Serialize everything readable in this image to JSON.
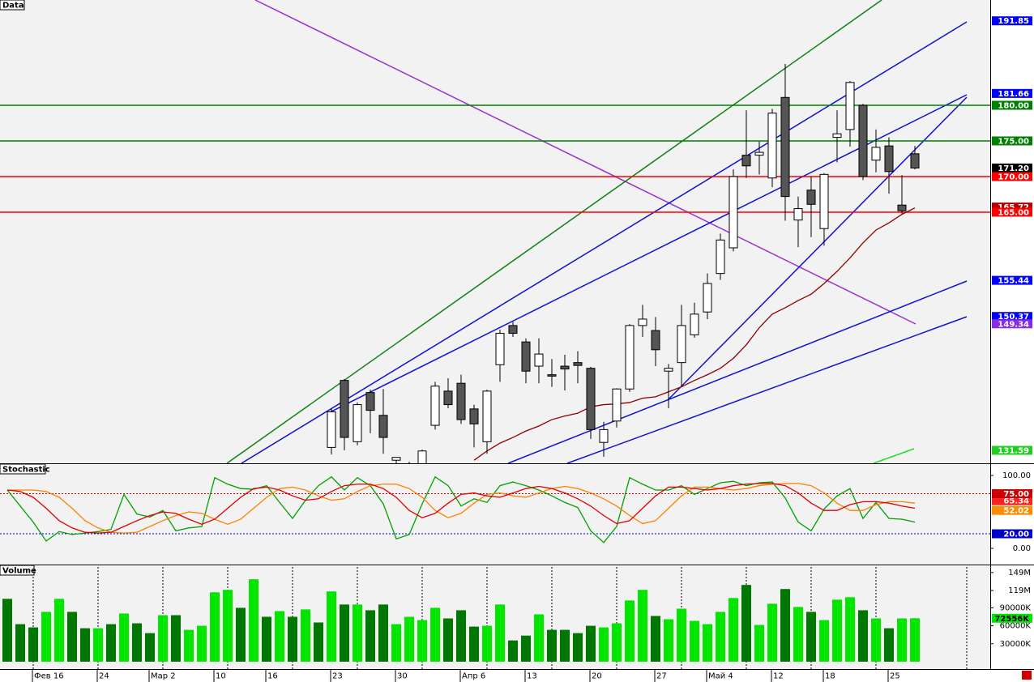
{
  "chart_data": [
    {
      "type": "candlestick",
      "title": "Data",
      "ylim": [
        129.77,
        194.77
      ],
      "open": [
        null,
        null,
        null,
        null,
        null,
        null,
        null,
        null,
        null,
        null,
        null,
        null,
        null,
        null,
        null,
        null,
        null,
        null,
        null,
        null,
        null,
        null,
        null,
        null,
        null,
        132,
        141.4,
        132.8,
        139.7,
        136.5,
        130.2,
        128.5,
        128.5,
        135.1,
        139.9,
        141.0,
        137.4,
        132.8,
        143.6,
        149.1,
        146.8,
        143.4,
        142.2,
        143.4,
        143.9,
        143.1,
        132.7,
        135.7,
        140.2,
        149.1,
        148.4,
        142.7,
        143.9,
        147.8,
        151.0,
        156.4,
        160.0,
        173.0,
        173.0,
        169.8,
        181.1,
        163.9,
        168.1,
        162.7,
        175.5,
        176.6,
        180.0,
        172.3,
        174.3,
        166.0,
        173.2
      ],
      "high": [
        null,
        null,
        null,
        null,
        null,
        null,
        null,
        null,
        null,
        null,
        null,
        null,
        null,
        null,
        null,
        null,
        null,
        null,
        null,
        null,
        null,
        null,
        null,
        null,
        null,
        137.4,
        141.6,
        138.3,
        140.1,
        140.2,
        130.6,
        130,
        131.7,
        141.2,
        141.7,
        142.2,
        138.0,
        140.1,
        148.5,
        149.6,
        147.3,
        147.3,
        144.4,
        145.0,
        145.5,
        143.3,
        135.6,
        140.3,
        149.3,
        152.0,
        150.3,
        143.7,
        152.0,
        152.3,
        156.4,
        162.0,
        171.0,
        179.3,
        174.9,
        179.5,
        185.8,
        167.2,
        170.0,
        170.5,
        179.3,
        183.4,
        180.2,
        176.6,
        175.5,
        170.2,
        174.3
      ],
      "low": [
        null,
        null,
        null,
        null,
        null,
        null,
        null,
        null,
        null,
        null,
        null,
        null,
        null,
        null,
        null,
        null,
        null,
        null,
        null,
        null,
        null,
        null,
        null,
        null,
        null,
        131,
        131.6,
        132.3,
        134.0,
        131.1,
        129.0,
        127,
        127,
        134.5,
        137.5,
        135.3,
        132.0,
        131.1,
        141.2,
        147.5,
        141.0,
        141.0,
        140.5,
        140.0,
        141.0,
        133.2,
        130.7,
        134.8,
        139.8,
        147.5,
        143.4,
        137.5,
        140.6,
        147.4,
        150.0,
        155.5,
        159.5,
        169.8,
        170.3,
        168.5,
        163.8,
        160.1,
        161.5,
        160.3,
        172.0,
        174.2,
        169.5,
        170.6,
        167.6,
        164.8,
        171.0
      ],
      "close": [
        null,
        null,
        null,
        null,
        null,
        null,
        null,
        null,
        null,
        null,
        null,
        null,
        null,
        null,
        null,
        null,
        null,
        null,
        null,
        null,
        null,
        null,
        null,
        null,
        null,
        137.0,
        133.4,
        138.0,
        137.2,
        133.4,
        130.6,
        129.5,
        131.5,
        140.6,
        138.0,
        135.9,
        135.3,
        139.9,
        148.0,
        148.0,
        142.7,
        145.1,
        142.0,
        143.0,
        143.5,
        134.5,
        134.5,
        140.2,
        149.1,
        150.0,
        145.7,
        143.1,
        149.1,
        150.7,
        155.0,
        161.1,
        170.0,
        171.5,
        173.4,
        178.9,
        167.2,
        165.5,
        166.1,
        170.3,
        176.0,
        183.2,
        170.0,
        174.1,
        170.7,
        165.2,
        171.2
      ],
      "ma": {
        "color": "#8b0000",
        "values": [
          null,
          null,
          null,
          null,
          null,
          null,
          null,
          null,
          null,
          null,
          null,
          null,
          null,
          null,
          null,
          null,
          null,
          null,
          null,
          null,
          null,
          null,
          null,
          null,
          null,
          null,
          null,
          null,
          null,
          null,
          null,
          null,
          null,
          null,
          null,
          null,
          130.2,
          131.5,
          132.6,
          133.4,
          134.3,
          135.0,
          135.9,
          136.4,
          136.8,
          137.7,
          138.0,
          138.1,
          138.3,
          138.9,
          139.1,
          139.8,
          140.5,
          141.4,
          142.2,
          143.1,
          144.5,
          146.4,
          148.8,
          150.7,
          151.6,
          152.6,
          153.5,
          155.0,
          156.7,
          158.6,
          160.7,
          162.5,
          163.5,
          164.7,
          165.6
        ]
      },
      "price_labels": [
        {
          "value": 191.85,
          "label": "191.85",
          "color": "#0000ff",
          "line": false
        },
        {
          "value": 181.66,
          "label": "181.66",
          "color": "#0000ff",
          "line": false
        },
        {
          "value": 180,
          "label": "180.00",
          "color": "#008000",
          "line": true
        },
        {
          "value": 175,
          "label": "175.00",
          "color": "#008000",
          "line": true
        },
        {
          "value": 171.2,
          "label": "171.20",
          "color": "#000000",
          "line": false
        },
        {
          "value": 170,
          "label": "170.00",
          "color": "#ff0000",
          "line": true
        },
        {
          "value": 165.72,
          "label": "165.72",
          "color": "#b00000",
          "line": false
        },
        {
          "value": 165,
          "label": "165.00",
          "color": "#ff0000",
          "line": true
        },
        {
          "value": 155.44,
          "label": "155.44",
          "color": "#0000ff",
          "line": false
        },
        {
          "value": 150.37,
          "label": "150.37",
          "color": "#0000ff",
          "line": false
        },
        {
          "value": 149.34,
          "label": "149.34",
          "color": "#8a2be2",
          "line": false
        },
        {
          "value": 131.59,
          "label": "131.59",
          "color": "#22cc22",
          "line": false
        }
      ]
    },
    {
      "type": "line",
      "title": "Stochastic",
      "ylim": [
        -22.2,
        114.4
      ],
      "yticks": [
        {
          "value": 100,
          "label": "100.00"
        },
        {
          "value": 0,
          "label": "0.00"
        }
      ],
      "levels": [
        {
          "value": 75,
          "label": "75.00",
          "color": "#cc0000"
        },
        {
          "value": 20,
          "label": "20.00",
          "color": "#0000cc"
        }
      ],
      "series": [
        {
          "color": "#00a000",
          "values": [
            80,
            58,
            36,
            10,
            23,
            19,
            21,
            23,
            26,
            74,
            47,
            43,
            52,
            24,
            28,
            30,
            97,
            88,
            82,
            81,
            86,
            63,
            41,
            66,
            86,
            98,
            80,
            97,
            86,
            61,
            13,
            19,
            61,
            98,
            86,
            58,
            68,
            63,
            86,
            91,
            86,
            80,
            72,
            63,
            56,
            24,
            8,
            30,
            97,
            88,
            80,
            80,
            86,
            74,
            82,
            90,
            92,
            86,
            90,
            91,
            69,
            36,
            24,
            54,
            72,
            82,
            41,
            63,
            41,
            40,
            36
          ]
        },
        {
          "color": "#ff8000",
          "values": [
            80,
            80,
            80,
            78,
            70,
            55,
            38,
            28,
            22,
            21,
            22,
            30,
            38,
            45,
            50,
            48,
            40,
            33,
            40,
            55,
            70,
            82,
            84,
            80,
            72,
            66,
            68,
            78,
            86,
            88,
            88,
            82,
            70,
            52,
            42,
            48,
            62,
            74,
            76,
            72,
            70,
            76,
            82,
            85,
            82,
            76,
            68,
            58,
            45,
            34,
            38,
            55,
            72,
            84,
            84,
            82,
            80,
            82,
            86,
            88,
            89,
            89,
            86,
            76,
            62,
            52,
            52,
            60,
            64,
            64,
            62
          ]
        },
        {
          "color": "#e00000",
          "values": [
            80,
            78,
            70,
            55,
            38,
            28,
            22,
            21,
            22,
            30,
            38,
            45,
            50,
            48,
            40,
            33,
            40,
            55,
            70,
            82,
            84,
            80,
            72,
            66,
            68,
            78,
            86,
            88,
            88,
            82,
            70,
            52,
            42,
            48,
            62,
            74,
            76,
            72,
            70,
            76,
            82,
            85,
            82,
            76,
            68,
            58,
            45,
            34,
            38,
            55,
            72,
            84,
            84,
            82,
            80,
            82,
            86,
            88,
            89,
            89,
            86,
            76,
            62,
            52,
            52,
            60,
            64,
            64,
            62,
            58,
            55
          ]
        }
      ],
      "end_labels": [
        {
          "value": 65.34,
          "label": "65.34",
          "color": "#ff2020"
        },
        {
          "value": 52.02,
          "label": "52.02",
          "color": "#ff8c00"
        }
      ]
    },
    {
      "type": "bar",
      "title": "Volume",
      "ylim": [
        -12273,
        159545
      ],
      "yticks": [
        {
          "value": 149000,
          "label": "149M"
        },
        {
          "value": 119000,
          "label": "119M"
        },
        {
          "value": 90000,
          "label": "90000K"
        },
        {
          "value": 60000,
          "label": "60000K"
        },
        {
          "value": 30000,
          "label": "30000K"
        }
      ],
      "values": [
        105000,
        62700,
        57300,
        83200,
        105000,
        83200,
        55900,
        55900,
        62700,
        80500,
        64100,
        47700,
        77700,
        77700,
        53200,
        60000,
        115900,
        120000,
        90000,
        137700,
        75000,
        84500,
        75000,
        87300,
        65500,
        117300,
        95500,
        95500,
        85900,
        95500,
        62700,
        75000,
        69500,
        90000,
        72300,
        85900,
        58600,
        60000,
        95500,
        35500,
        43600,
        79100,
        53200,
        53200,
        47700,
        60000,
        57300,
        64100,
        102300,
        120000,
        76400,
        70900,
        88600,
        68200,
        62700,
        83200,
        106400,
        128200,
        61400,
        96800,
        121400,
        91400,
        83200,
        69500,
        103600,
        107700,
        85900,
        72300,
        55900,
        72300,
        72556
      ],
      "palette": {
        "L": "#00e600",
        "D": "#007800"
      },
      "tones": [
        "D",
        "D",
        "D",
        "L",
        "L",
        "D",
        "D",
        "L",
        "D",
        "L",
        "D",
        "D",
        "L",
        "D",
        "L",
        "L",
        "L",
        "L",
        "D",
        "L",
        "D",
        "L",
        "D",
        "L",
        "D",
        "L",
        "D",
        "L",
        "D",
        "D",
        "L",
        "L",
        "L",
        "L",
        "D",
        "D",
        "D",
        "L",
        "L",
        "D",
        "D",
        "L",
        "D",
        "D",
        "D",
        "D",
        "L",
        "L",
        "L",
        "L",
        "D",
        "L",
        "L",
        "L",
        "L",
        "L",
        "L",
        "D",
        "L",
        "L",
        "D",
        "L",
        "D",
        "L",
        "L",
        "L",
        "D",
        "L",
        "D",
        "L",
        "L"
      ],
      "last_value_label": "72556K",
      "xticks": [
        {
          "value": 2,
          "label": "Фев 16"
        },
        {
          "value": 7,
          "label": "24"
        },
        {
          "value": 11,
          "label": "Мар 2"
        },
        {
          "value": 16,
          "label": "10"
        },
        {
          "value": 20,
          "label": "16"
        },
        {
          "value": 25,
          "label": "23"
        },
        {
          "value": 30,
          "label": "30"
        },
        {
          "value": 35,
          "label": "Апр 6"
        },
        {
          "value": 40,
          "label": "13"
        },
        {
          "value": 45,
          "label": "20"
        },
        {
          "value": 50,
          "label": "27"
        },
        {
          "value": 54,
          "label": "Май 4"
        },
        {
          "value": 59,
          "label": "12"
        },
        {
          "value": 63,
          "label": "18"
        },
        {
          "value": 68,
          "label": "25"
        }
      ]
    }
  ]
}
